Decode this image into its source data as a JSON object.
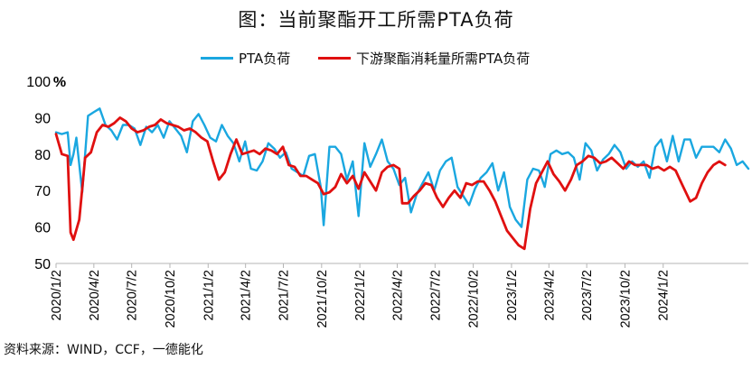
{
  "chart_data": {
    "type": "line",
    "title": "图：当前聚酯开工所需PTA负荷",
    "ylabel": "%",
    "ylim": [
      50,
      100
    ],
    "yticks": [
      "100",
      "90",
      "80",
      "70",
      "60",
      "50"
    ],
    "grid": false,
    "legend_position": "top-center",
    "x_range": [
      "2020-01-02",
      "2024-07-25"
    ],
    "x_tick_labels": [
      "2020/1/2",
      "2020/4/2",
      "2020/7/2",
      "2020/10/2",
      "2021/1/2",
      "2021/4/2",
      "2021/7/2",
      "2021/10/2",
      "2022/1/2",
      "2022/4/2",
      "2022/7/2",
      "2022/10/2",
      "2023/1/2",
      "2023/4/2",
      "2023/7/2",
      "2023/10/2",
      "2024/1/2"
    ],
    "series": [
      {
        "name": "PTA负荷",
        "color": "#1aa7e0",
        "points": [
          [
            "2020-01-02",
            86
          ],
          [
            "2020-01-16",
            85.5
          ],
          [
            "2020-01-30",
            86
          ],
          [
            "2020-02-06",
            77
          ],
          [
            "2020-02-13",
            80
          ],
          [
            "2020-02-20",
            84.5
          ],
          [
            "2020-03-05",
            69.5
          ],
          [
            "2020-03-19",
            90.5
          ],
          [
            "2020-04-02",
            91.5
          ],
          [
            "2020-04-16",
            92.5
          ],
          [
            "2020-04-30",
            88
          ],
          [
            "2020-05-14",
            86.5
          ],
          [
            "2020-05-28",
            84
          ],
          [
            "2020-06-11",
            88
          ],
          [
            "2020-06-25",
            88
          ],
          [
            "2020-07-09",
            87
          ],
          [
            "2020-07-23",
            82.5
          ],
          [
            "2020-08-06",
            87.5
          ],
          [
            "2020-08-20",
            86
          ],
          [
            "2020-09-03",
            88
          ],
          [
            "2020-09-17",
            84.5
          ],
          [
            "2020-10-01",
            89
          ],
          [
            "2020-10-15",
            87
          ],
          [
            "2020-10-29",
            85
          ],
          [
            "2020-11-12",
            80.5
          ],
          [
            "2020-11-26",
            89
          ],
          [
            "2020-12-10",
            91
          ],
          [
            "2020-12-24",
            88
          ],
          [
            "2021-01-07",
            84.5
          ],
          [
            "2021-01-21",
            83.5
          ],
          [
            "2021-02-04",
            88
          ],
          [
            "2021-02-18",
            85
          ],
          [
            "2021-03-04",
            83
          ],
          [
            "2021-03-18",
            78
          ],
          [
            "2021-04-01",
            83.5
          ],
          [
            "2021-04-15",
            76
          ],
          [
            "2021-04-29",
            75.5
          ],
          [
            "2021-05-13",
            78
          ],
          [
            "2021-05-27",
            83
          ],
          [
            "2021-06-10",
            81.5
          ],
          [
            "2021-06-24",
            79
          ],
          [
            "2021-07-08",
            80.5
          ],
          [
            "2021-07-22",
            76
          ],
          [
            "2021-08-05",
            75
          ],
          [
            "2021-08-19",
            74
          ],
          [
            "2021-09-02",
            79.5
          ],
          [
            "2021-09-16",
            80
          ],
          [
            "2021-09-30",
            71
          ],
          [
            "2021-10-07",
            60.5
          ],
          [
            "2021-10-21",
            82
          ],
          [
            "2021-11-04",
            82
          ],
          [
            "2021-11-18",
            80
          ],
          [
            "2021-12-02",
            73
          ],
          [
            "2021-12-16",
            78
          ],
          [
            "2021-12-30",
            63
          ],
          [
            "2022-01-13",
            83
          ],
          [
            "2022-01-27",
            76.5
          ],
          [
            "2022-02-10",
            80
          ],
          [
            "2022-02-24",
            84
          ],
          [
            "2022-03-10",
            78
          ],
          [
            "2022-03-24",
            76
          ],
          [
            "2022-04-07",
            71.5
          ],
          [
            "2022-04-21",
            73.5
          ],
          [
            "2022-05-05",
            64
          ],
          [
            "2022-05-19",
            69
          ],
          [
            "2022-06-02",
            72
          ],
          [
            "2022-06-16",
            75
          ],
          [
            "2022-06-30",
            70
          ],
          [
            "2022-07-14",
            75.5
          ],
          [
            "2022-07-28",
            78
          ],
          [
            "2022-08-11",
            79
          ],
          [
            "2022-08-25",
            71
          ],
          [
            "2022-09-08",
            68.5
          ],
          [
            "2022-09-22",
            66
          ],
          [
            "2022-10-06",
            70.5
          ],
          [
            "2022-10-20",
            73.5
          ],
          [
            "2022-11-03",
            75
          ],
          [
            "2022-11-17",
            77.5
          ],
          [
            "2022-12-01",
            70
          ],
          [
            "2022-12-15",
            75
          ],
          [
            "2022-12-29",
            65.5
          ],
          [
            "2023-01-12",
            62
          ],
          [
            "2023-01-26",
            60
          ],
          [
            "2023-02-09",
            73
          ],
          [
            "2023-02-23",
            76
          ],
          [
            "2023-03-09",
            75.5
          ],
          [
            "2023-03-23",
            71
          ],
          [
            "2023-04-06",
            80
          ],
          [
            "2023-04-20",
            81
          ],
          [
            "2023-05-04",
            80
          ],
          [
            "2023-05-18",
            80.5
          ],
          [
            "2023-06-01",
            79
          ],
          [
            "2023-06-15",
            73
          ],
          [
            "2023-06-29",
            83
          ],
          [
            "2023-07-13",
            81
          ],
          [
            "2023-07-27",
            75.5
          ],
          [
            "2023-08-10",
            78.5
          ],
          [
            "2023-08-24",
            80
          ],
          [
            "2023-09-07",
            82.5
          ],
          [
            "2023-09-21",
            80.5
          ],
          [
            "2023-10-05",
            76
          ],
          [
            "2023-10-19",
            78
          ],
          [
            "2023-11-02",
            76.5
          ],
          [
            "2023-11-16",
            78
          ],
          [
            "2023-11-30",
            73.5
          ],
          [
            "2023-12-14",
            82
          ],
          [
            "2023-12-28",
            84
          ],
          [
            "2024-01-11",
            78
          ],
          [
            "2024-01-25",
            85
          ],
          [
            "2024-02-08",
            78
          ],
          [
            "2024-02-22",
            84
          ],
          [
            "2024-03-07",
            84
          ],
          [
            "2024-03-21",
            79
          ],
          [
            "2024-04-04",
            82
          ],
          [
            "2024-04-18",
            82
          ],
          [
            "2024-05-02",
            82
          ],
          [
            "2024-05-16",
            80.5
          ],
          [
            "2024-05-30",
            84
          ],
          [
            "2024-06-13",
            81.5
          ],
          [
            "2024-06-27",
            77
          ],
          [
            "2024-07-11",
            78
          ],
          [
            "2024-07-25",
            76
          ]
        ]
      },
      {
        "name": "下游聚酯消耗量所需PTA负荷",
        "color": "#e01010",
        "points": [
          [
            "2020-01-02",
            85.5
          ],
          [
            "2020-01-16",
            80
          ],
          [
            "2020-01-30",
            79.5
          ],
          [
            "2020-02-06",
            58.5
          ],
          [
            "2020-02-13",
            56.5
          ],
          [
            "2020-02-27",
            62
          ],
          [
            "2020-03-12",
            79
          ],
          [
            "2020-03-26",
            80.5
          ],
          [
            "2020-04-09",
            86
          ],
          [
            "2020-04-23",
            88
          ],
          [
            "2020-05-07",
            87.5
          ],
          [
            "2020-05-21",
            88.5
          ],
          [
            "2020-06-04",
            90
          ],
          [
            "2020-06-18",
            89
          ],
          [
            "2020-07-02",
            87
          ],
          [
            "2020-07-16",
            86
          ],
          [
            "2020-07-30",
            86.5
          ],
          [
            "2020-08-13",
            87.5
          ],
          [
            "2020-08-27",
            88
          ],
          [
            "2020-09-10",
            89.5
          ],
          [
            "2020-09-24",
            88.5
          ],
          [
            "2020-10-08",
            88
          ],
          [
            "2020-10-22",
            87.5
          ],
          [
            "2020-11-05",
            86.5
          ],
          [
            "2020-11-19",
            87
          ],
          [
            "2020-12-03",
            86
          ],
          [
            "2020-12-17",
            84.5
          ],
          [
            "2020-12-31",
            83.5
          ],
          [
            "2021-01-14",
            78
          ],
          [
            "2021-01-28",
            73
          ],
          [
            "2021-02-11",
            75
          ],
          [
            "2021-02-25",
            80
          ],
          [
            "2021-03-11",
            84
          ],
          [
            "2021-03-25",
            80
          ],
          [
            "2021-04-08",
            80.5
          ],
          [
            "2021-04-22",
            81
          ],
          [
            "2021-05-06",
            80
          ],
          [
            "2021-05-20",
            81.5
          ],
          [
            "2021-06-03",
            81
          ],
          [
            "2021-06-17",
            80
          ],
          [
            "2021-07-01",
            82
          ],
          [
            "2021-07-15",
            77
          ],
          [
            "2021-07-29",
            76.5
          ],
          [
            "2021-08-12",
            74
          ],
          [
            "2021-08-26",
            74
          ],
          [
            "2021-09-09",
            73
          ],
          [
            "2021-09-23",
            72
          ],
          [
            "2021-10-07",
            69
          ],
          [
            "2021-10-21",
            69.5
          ],
          [
            "2021-11-04",
            71
          ],
          [
            "2021-11-18",
            74.5
          ],
          [
            "2021-12-02",
            72
          ],
          [
            "2021-12-16",
            74
          ],
          [
            "2021-12-30",
            70.5
          ],
          [
            "2022-01-13",
            75
          ],
          [
            "2022-01-27",
            72.5
          ],
          [
            "2022-02-10",
            70
          ],
          [
            "2022-02-24",
            75
          ],
          [
            "2022-03-10",
            76.5
          ],
          [
            "2022-03-24",
            77
          ],
          [
            "2022-04-07",
            76
          ],
          [
            "2022-04-14",
            66.5
          ],
          [
            "2022-04-28",
            66.5
          ],
          [
            "2022-05-12",
            68.5
          ],
          [
            "2022-05-26",
            70
          ],
          [
            "2022-06-09",
            72
          ],
          [
            "2022-06-23",
            71.5
          ],
          [
            "2022-07-07",
            68
          ],
          [
            "2022-07-21",
            65.5
          ],
          [
            "2022-08-04",
            68
          ],
          [
            "2022-08-18",
            70
          ],
          [
            "2022-09-01",
            68
          ],
          [
            "2022-09-15",
            72
          ],
          [
            "2022-09-29",
            71.5
          ],
          [
            "2022-10-13",
            72.5
          ],
          [
            "2022-10-27",
            72.5
          ],
          [
            "2022-11-10",
            70
          ],
          [
            "2022-11-24",
            67
          ],
          [
            "2022-12-08",
            63
          ],
          [
            "2022-12-22",
            59
          ],
          [
            "2023-01-05",
            57
          ],
          [
            "2023-01-19",
            55
          ],
          [
            "2023-02-02",
            54
          ],
          [
            "2023-02-16",
            65
          ],
          [
            "2023-03-02",
            72
          ],
          [
            "2023-03-16",
            75
          ],
          [
            "2023-03-30",
            78
          ],
          [
            "2023-04-13",
            74.5
          ],
          [
            "2023-04-27",
            72.5
          ],
          [
            "2023-05-11",
            70
          ],
          [
            "2023-05-25",
            73
          ],
          [
            "2023-06-08",
            77
          ],
          [
            "2023-06-22",
            78
          ],
          [
            "2023-07-06",
            79.5
          ],
          [
            "2023-07-20",
            79
          ],
          [
            "2023-08-03",
            77.5
          ],
          [
            "2023-08-17",
            78
          ],
          [
            "2023-08-31",
            79
          ],
          [
            "2023-09-14",
            77.5
          ],
          [
            "2023-09-28",
            76
          ],
          [
            "2023-10-12",
            78
          ],
          [
            "2023-10-26",
            77
          ],
          [
            "2023-11-09",
            77
          ],
          [
            "2023-11-23",
            77
          ],
          [
            "2023-12-07",
            76
          ],
          [
            "2023-12-21",
            76.5
          ],
          [
            "2024-01-04",
            75.5
          ],
          [
            "2024-01-18",
            76.5
          ],
          [
            "2024-02-01",
            75.5
          ],
          [
            "2024-02-15",
            72
          ],
          [
            "2024-03-07",
            67
          ],
          [
            "2024-03-21",
            68
          ],
          [
            "2024-04-04",
            72
          ],
          [
            "2024-04-18",
            75
          ],
          [
            "2024-05-02",
            77
          ],
          [
            "2024-05-16",
            78
          ],
          [
            "2024-05-30",
            77
          ]
        ]
      }
    ]
  },
  "footer": {
    "source": "资料来源：WIND，CCF，一德能化"
  }
}
